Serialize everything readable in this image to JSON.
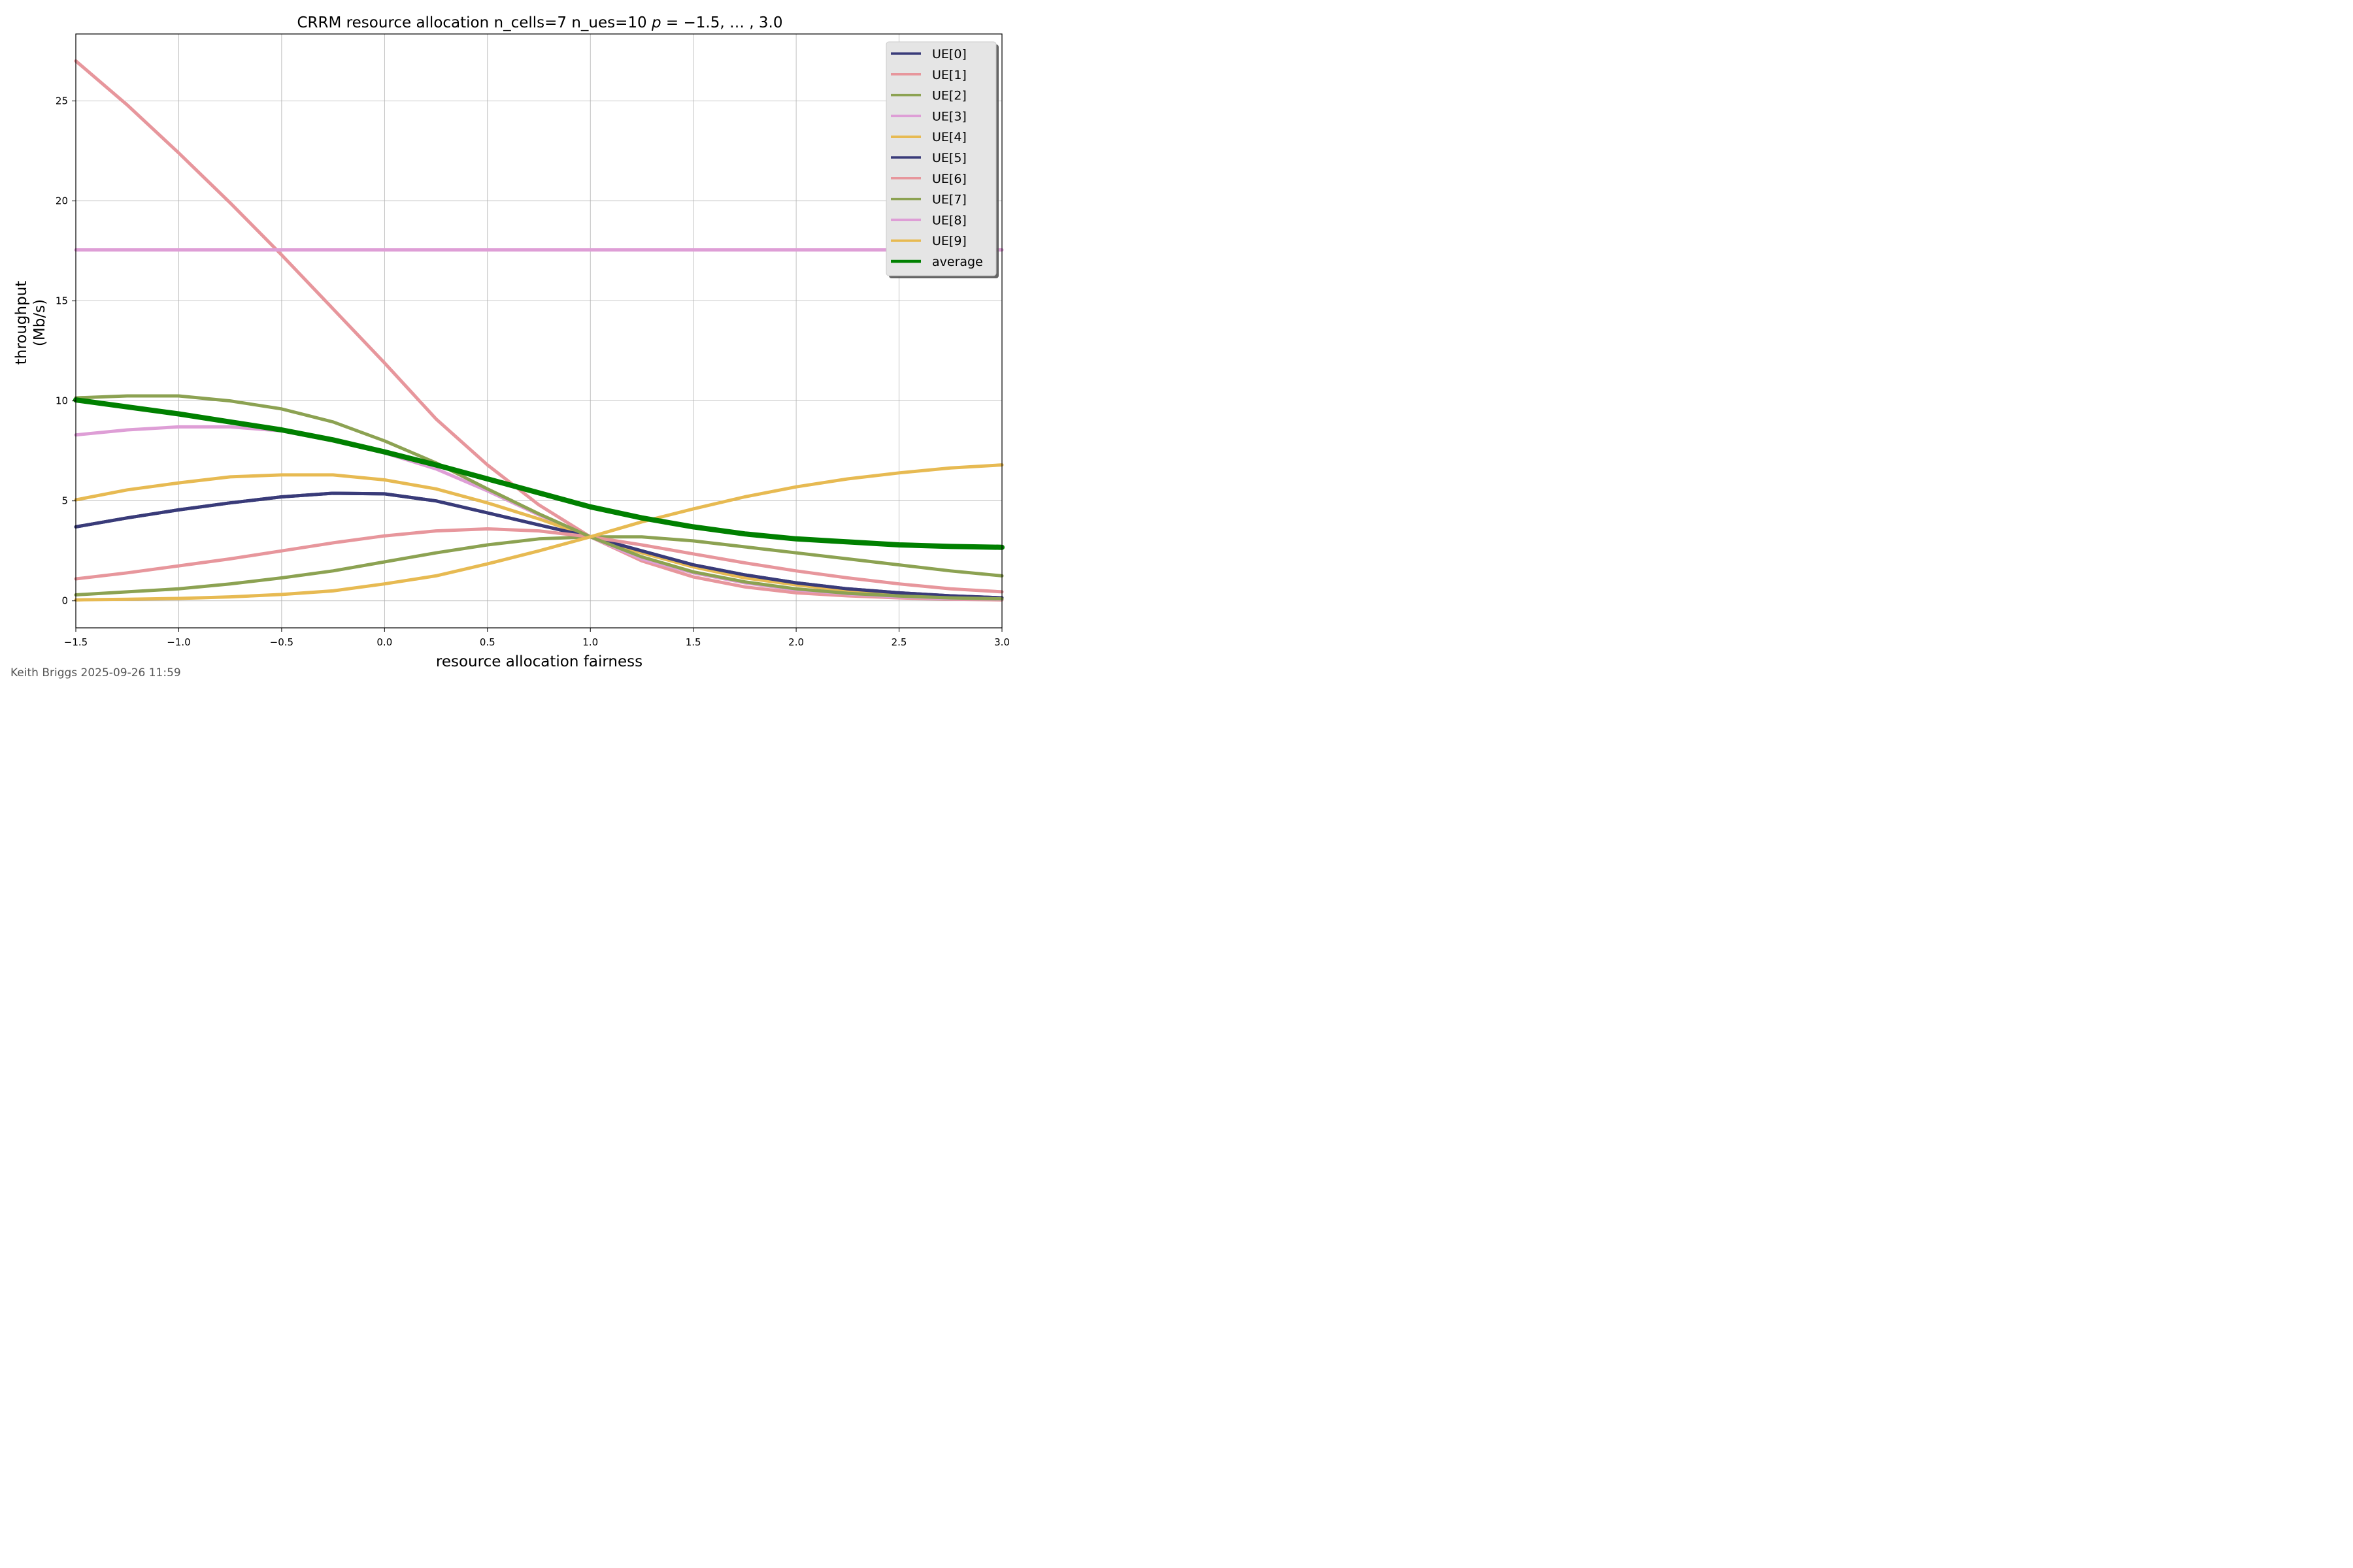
{
  "chart_data": {
    "type": "line",
    "title_parts": {
      "prefix": "CRRM resource allocation n_cells=7 n_ues=10 ",
      "p_symbol": "p",
      "suffix": " = −1.5, … , 3.0"
    },
    "xlabel": "resource allocation fairness",
    "ylabel_lines": [
      "throughput",
      "(Mb/s)"
    ],
    "xlim": [
      -1.5,
      3.0
    ],
    "ylim": [
      -1.35,
      28.35
    ],
    "x_ticks": [
      -1.5,
      -1.0,
      -0.5,
      0.0,
      0.5,
      1.0,
      1.5,
      2.0,
      2.5,
      3.0
    ],
    "x_tick_labels": [
      "−1.5",
      "−1.0",
      "−0.5",
      "0.0",
      "0.5",
      "1.0",
      "1.5",
      "2.0",
      "2.5",
      "3.0"
    ],
    "y_ticks": [
      0,
      5,
      10,
      15,
      20,
      25
    ],
    "y_tick_labels": [
      "0",
      "5",
      "10",
      "15",
      "20",
      "25"
    ],
    "grid": true,
    "legend_position": "top-right",
    "x": [
      -1.5,
      -1.25,
      -1.0,
      -0.75,
      -0.5,
      -0.25,
      0.0,
      0.25,
      0.5,
      0.75,
      1.0,
      1.25,
      1.5,
      1.75,
      2.0,
      2.25,
      2.5,
      2.75,
      3.0
    ],
    "series": [
      {
        "name": "UE[0]",
        "color": "#393b79",
        "values": [
          3.7,
          4.15,
          4.55,
          4.9,
          5.2,
          5.38,
          5.35,
          5.0,
          4.4,
          3.8,
          3.2,
          2.5,
          1.8,
          1.3,
          0.9,
          0.6,
          0.4,
          0.25,
          0.15
        ]
      },
      {
        "name": "UE[1]",
        "color": "#e7969c",
        "values": [
          27.0,
          24.8,
          22.4,
          19.9,
          17.3,
          14.6,
          11.9,
          9.1,
          6.8,
          4.8,
          3.2,
          2.0,
          1.2,
          0.7,
          0.4,
          0.25,
          0.15,
          0.08,
          0.05
        ]
      },
      {
        "name": "UE[2]",
        "color": "#8ca252",
        "values": [
          0.3,
          0.45,
          0.6,
          0.85,
          1.15,
          1.5,
          1.95,
          2.4,
          2.8,
          3.1,
          3.2,
          3.2,
          3.0,
          2.7,
          2.4,
          2.1,
          1.8,
          1.5,
          1.25
        ]
      },
      {
        "name": "UE[3]",
        "color": "#de9ed6",
        "values": [
          8.3,
          8.55,
          8.7,
          8.7,
          8.5,
          8.0,
          7.4,
          6.6,
          5.5,
          4.3,
          3.2,
          2.1,
          1.4,
          0.9,
          0.55,
          0.35,
          0.2,
          0.12,
          0.08
        ]
      },
      {
        "name": "UE[4]",
        "color": "#e7ba52",
        "values": [
          5.05,
          5.55,
          5.9,
          6.2,
          6.3,
          6.3,
          6.05,
          5.6,
          4.9,
          4.1,
          3.2,
          2.4,
          1.7,
          1.15,
          0.8,
          0.5,
          0.32,
          0.2,
          0.12
        ]
      },
      {
        "name": "UE[5]",
        "color": "#393b79",
        "values": [
          3.7,
          4.15,
          4.55,
          4.9,
          5.2,
          5.38,
          5.35,
          5.0,
          4.4,
          3.8,
          3.2,
          2.5,
          1.8,
          1.3,
          0.9,
          0.6,
          0.4,
          0.25,
          0.15
        ]
      },
      {
        "name": "UE[6]",
        "color": "#e7969c",
        "values": [
          1.1,
          1.4,
          1.75,
          2.1,
          2.5,
          2.9,
          3.25,
          3.5,
          3.6,
          3.5,
          3.2,
          2.8,
          2.35,
          1.9,
          1.5,
          1.15,
          0.85,
          0.6,
          0.45
        ]
      },
      {
        "name": "UE[7]",
        "color": "#8ca252",
        "values": [
          10.15,
          10.25,
          10.25,
          10.0,
          9.6,
          8.95,
          8.0,
          6.9,
          5.6,
          4.35,
          3.2,
          2.2,
          1.45,
          0.95,
          0.6,
          0.38,
          0.24,
          0.15,
          0.1
        ]
      },
      {
        "name": "UE[8]",
        "color": "#de9ed6",
        "values": [
          17.55,
          17.55,
          17.55,
          17.55,
          17.55,
          17.55,
          17.55,
          17.55,
          17.55,
          17.55,
          17.55,
          17.55,
          17.55,
          17.55,
          17.55,
          17.55,
          17.55,
          17.55,
          17.55
        ]
      },
      {
        "name": "UE[9]",
        "color": "#e7ba52",
        "values": [
          0.05,
          0.08,
          0.12,
          0.2,
          0.32,
          0.5,
          0.85,
          1.25,
          1.85,
          2.5,
          3.2,
          3.95,
          4.6,
          5.2,
          5.7,
          6.1,
          6.4,
          6.65,
          6.8
        ]
      },
      {
        "name": "average",
        "color": "#008000",
        "thick": true,
        "values": [
          10.05,
          9.7,
          9.35,
          8.95,
          8.55,
          8.05,
          7.45,
          6.8,
          6.1,
          5.4,
          4.7,
          4.15,
          3.7,
          3.35,
          3.1,
          2.95,
          2.8,
          2.72,
          2.68
        ]
      }
    ]
  },
  "footer": {
    "author_stamp": "Keith Briggs 2025-09-26 11:59"
  }
}
